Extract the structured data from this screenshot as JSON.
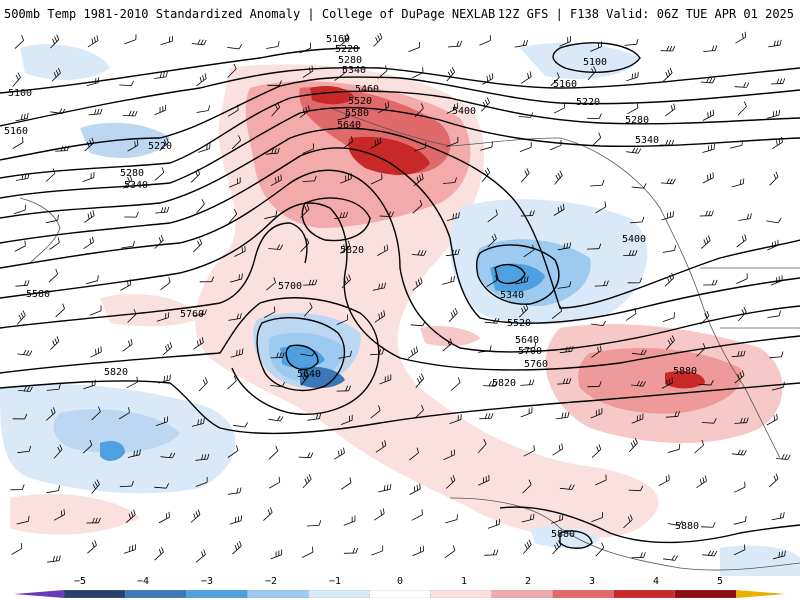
{
  "header": {
    "title": "500mb Temp 1981-2010 Standardized Anomaly | College of DuPage NEXLAB",
    "run_info": "12Z GFS | F138 Valid: 06Z TUE APR 01 2025"
  },
  "map": {
    "contour_labels": [
      "5160",
      "5220",
      "5280",
      "5340",
      "5100",
      "5160",
      "5220",
      "5280",
      "5340",
      "5460",
      "5520",
      "5580",
      "5640",
      "5400",
      "5100",
      "5160",
      "5220",
      "5280",
      "5340",
      "5400",
      "5820",
      "5700",
      "5760",
      "5580",
      "5340",
      "5520",
      "5640",
      "5700",
      "5760",
      "5820",
      "5640",
      "5820",
      "5880",
      "5880",
      "5880"
    ]
  },
  "colorbar": {
    "labels": [
      "−5",
      "−4",
      "−3",
      "−2",
      "−1",
      "0",
      "1",
      "2",
      "3",
      "4",
      "5"
    ],
    "colors": [
      "#6a3ab8",
      "#27406e",
      "#3b78b8",
      "#4ea0e0",
      "#9ccaf0",
      "#dae9f7",
      "#ffffff",
      "#fbe0e0",
      "#f3aaaa",
      "#e06a6a",
      "#c82828",
      "#8a1010",
      "#e8b000"
    ]
  }
}
